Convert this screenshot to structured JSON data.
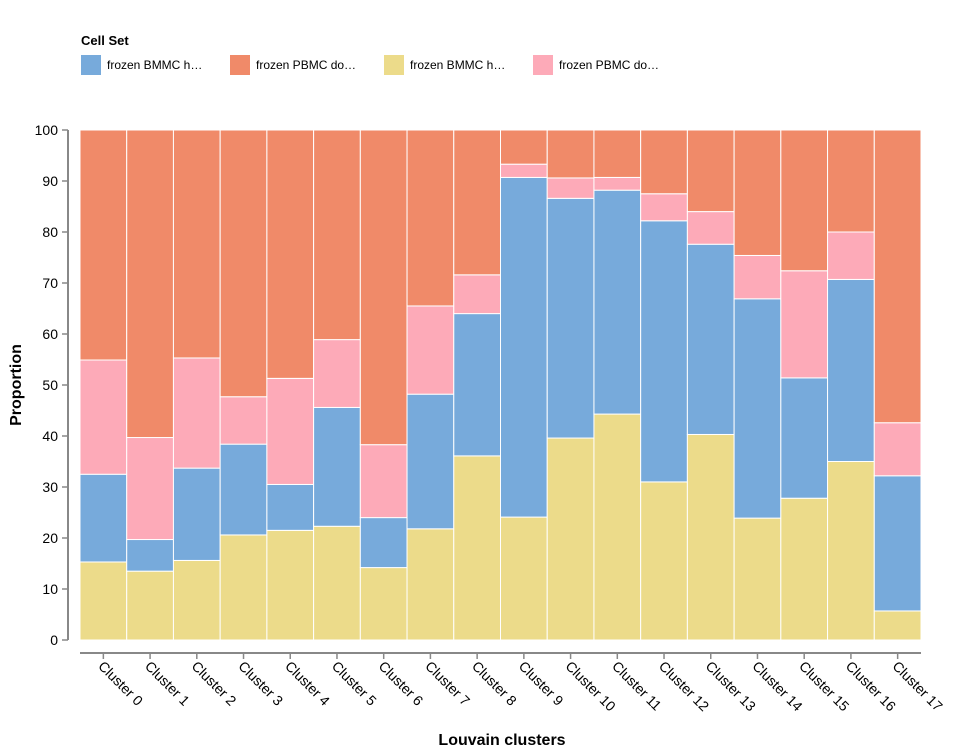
{
  "chart_data": {
    "type": "bar",
    "stacked": true,
    "normalized": true,
    "legend_title": "Cell Set",
    "legend_position": "top-left",
    "xlabel": "Louvain clusters",
    "ylabel": "Proportion",
    "ylim": [
      0,
      100
    ],
    "yticks": [
      0,
      10,
      20,
      30,
      40,
      50,
      60,
      70,
      80,
      90,
      100
    ],
    "categories": [
      "Cluster 0",
      "Cluster 1",
      "Cluster 2",
      "Cluster 3",
      "Cluster 4",
      "Cluster 5",
      "Cluster 6",
      "Cluster 7",
      "Cluster 8",
      "Cluster 9",
      "Cluster 10",
      "Cluster 11",
      "Cluster 12",
      "Cluster 13",
      "Cluster 14",
      "Cluster 15",
      "Cluster 16",
      "Cluster 17"
    ],
    "series": [
      {
        "name": "frozen BMMC h…",
        "color": "#ecdb8a",
        "values": [
          15.3,
          13.5,
          15.6,
          20.6,
          21.5,
          22.3,
          14.2,
          21.8,
          36.1,
          24.1,
          39.6,
          44.3,
          31.0,
          40.3,
          23.9,
          27.8,
          35.0,
          5.7
        ]
      },
      {
        "name": "frozen BMMC h…",
        "color": "#77aadb",
        "values": [
          17.2,
          6.2,
          18.1,
          17.8,
          9.0,
          23.3,
          9.8,
          26.4,
          27.9,
          66.6,
          47.0,
          43.9,
          51.2,
          37.3,
          43.0,
          23.6,
          35.7,
          26.5
        ]
      },
      {
        "name": "frozen PBMC do…",
        "color": "#fdaab8",
        "values": [
          22.4,
          20.0,
          21.6,
          9.3,
          20.8,
          13.3,
          14.3,
          17.3,
          7.6,
          2.6,
          4.0,
          2.5,
          5.3,
          6.4,
          8.5,
          21.0,
          9.3,
          10.4
        ]
      },
      {
        "name": "frozen PBMC do…",
        "color": "#f08a69",
        "values": [
          45.1,
          60.3,
          44.7,
          52.3,
          48.7,
          41.1,
          61.7,
          34.5,
          28.4,
          6.7,
          9.4,
          9.3,
          12.5,
          16.0,
          24.6,
          27.6,
          20.0,
          57.4
        ]
      }
    ],
    "legend": [
      {
        "label": "frozen BMMC h…",
        "color": "#77aadb"
      },
      {
        "label": "frozen PBMC do…",
        "color": "#f08a69"
      },
      {
        "label": "frozen BMMC h…",
        "color": "#ecdb8a"
      },
      {
        "label": "frozen PBMC do…",
        "color": "#fdaab8"
      }
    ]
  }
}
